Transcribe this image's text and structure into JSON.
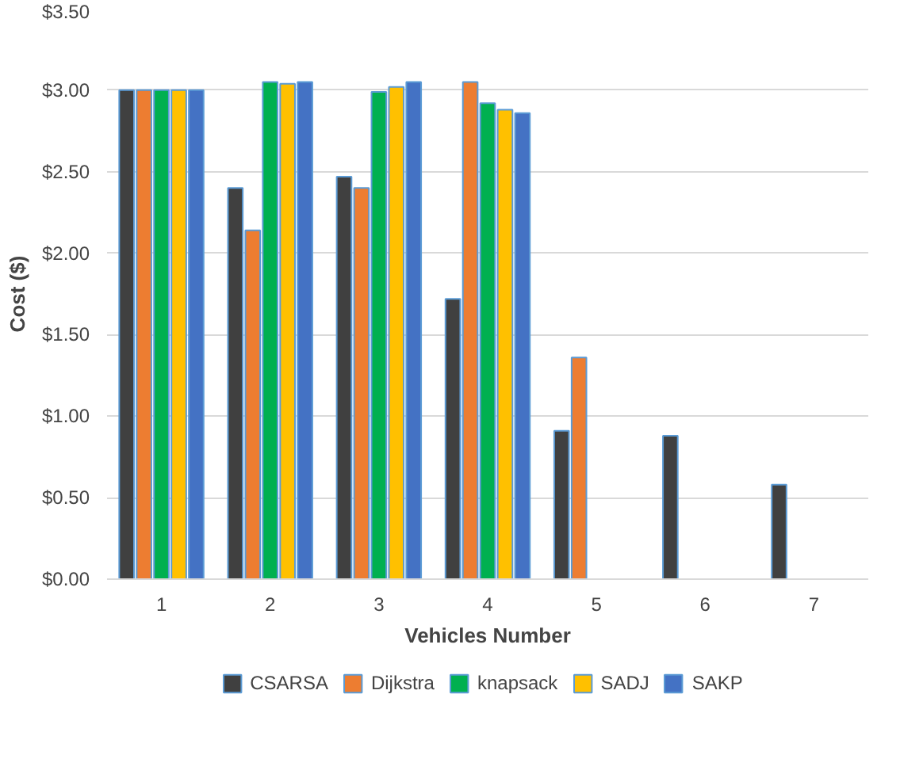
{
  "chart_data": {
    "type": "bar",
    "xlabel": "Vehicles Number",
    "ylabel": "Cost ($)",
    "categories": [
      "1",
      "2",
      "3",
      "4",
      "5",
      "6",
      "7"
    ],
    "series": [
      {
        "name": "CSARSA",
        "color": "#404040",
        "values": [
          3.0,
          2.4,
          2.47,
          1.72,
          0.91,
          0.88,
          0.58
        ]
      },
      {
        "name": "Dijkstra",
        "color": "#ed7d31",
        "values": [
          3.0,
          2.14,
          2.4,
          3.05,
          1.36,
          null,
          null
        ]
      },
      {
        "name": "knapsack",
        "color": "#00b050",
        "values": [
          3.0,
          3.05,
          2.99,
          2.92,
          null,
          null,
          null
        ]
      },
      {
        "name": "SADJ",
        "color": "#ffc000",
        "values": [
          3.0,
          3.04,
          3.02,
          2.88,
          null,
          null,
          null
        ]
      },
      {
        "name": "SAKP",
        "color": "#4472c4",
        "values": [
          3.0,
          3.05,
          3.05,
          2.86,
          null,
          null,
          null
        ]
      }
    ],
    "ylim": [
      0,
      3.5
    ],
    "yticks": [
      {
        "value": 0,
        "label": "$0.00"
      },
      {
        "value": 0.5,
        "label": "$0.50"
      },
      {
        "value": 1.0,
        "label": "$1.00"
      },
      {
        "value": 1.5,
        "label": "$1.50"
      },
      {
        "value": 2.0,
        "label": "$2.00"
      },
      {
        "value": 2.5,
        "label": "$2.50"
      },
      {
        "value": 3.0,
        "label": "$3.00"
      },
      {
        "value": 3.5,
        "label": "$3.50"
      }
    ],
    "grid": "y",
    "legend": "bottom"
  }
}
